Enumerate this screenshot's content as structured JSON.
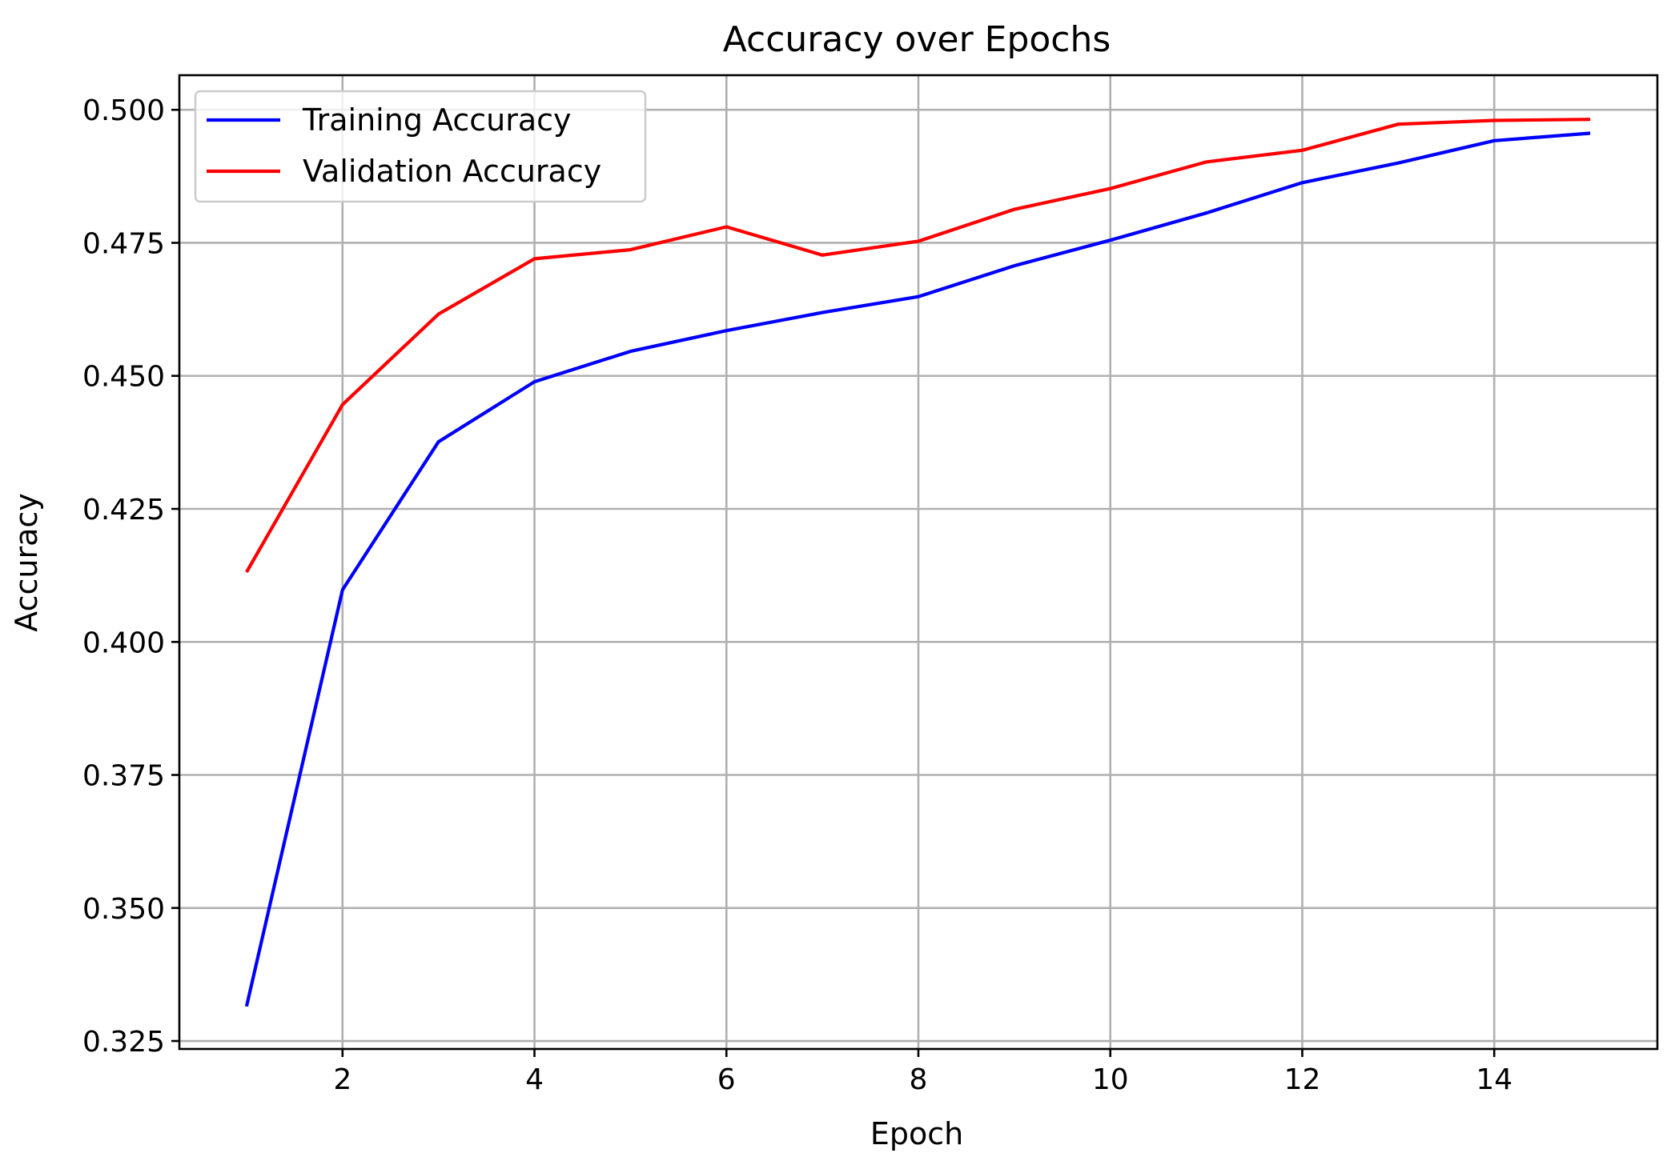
{
  "chart_data": {
    "type": "line",
    "title": "Accuracy over Epochs",
    "xlabel": "Epoch",
    "ylabel": "Accuracy",
    "x": [
      1,
      2,
      3,
      4,
      5,
      6,
      7,
      8,
      9,
      10,
      11,
      12,
      13,
      14,
      15
    ],
    "xlim": [
      0.3,
      15.7
    ],
    "ylim": [
      0.3235,
      0.5065
    ],
    "xticks": [
      2,
      4,
      6,
      8,
      10,
      12,
      14
    ],
    "xtick_labels": [
      "2",
      "4",
      "6",
      "8",
      "10",
      "12",
      "14"
    ],
    "yticks": [
      0.325,
      0.35,
      0.375,
      0.4,
      0.425,
      0.45,
      0.475,
      0.5
    ],
    "ytick_labels": [
      "0.325",
      "0.350",
      "0.375",
      "0.400",
      "0.425",
      "0.450",
      "0.475",
      "0.500"
    ],
    "grid": true,
    "legend_position": "top-left",
    "series": [
      {
        "name": "Training Accuracy",
        "color": "#0000ff",
        "values": [
          0.3315,
          0.4098,
          0.4376,
          0.4489,
          0.4546,
          0.4585,
          0.4619,
          0.4649,
          0.4707,
          0.4755,
          0.4806,
          0.4863,
          0.49,
          0.4942,
          0.4956
        ]
      },
      {
        "name": "Validation Accuracy",
        "color": "#ff0000",
        "values": [
          0.4131,
          0.4446,
          0.4616,
          0.472,
          0.4737,
          0.478,
          0.4727,
          0.4753,
          0.4813,
          0.4852,
          0.4902,
          0.4924,
          0.4973,
          0.498,
          0.4982
        ]
      }
    ]
  }
}
